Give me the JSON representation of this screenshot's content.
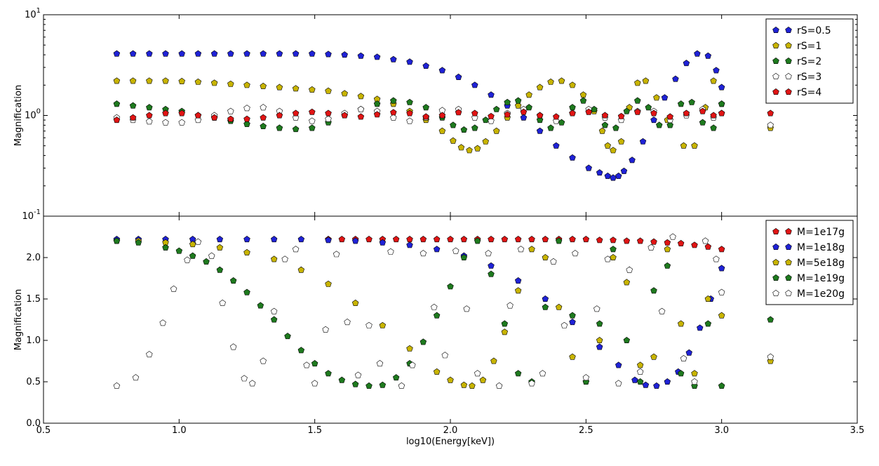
{
  "chart_data": [
    {
      "type": "scatter",
      "ylabel": "Magnification",
      "yscale": "log",
      "ylim": [
        0.1,
        10
      ],
      "ytick_labels": [
        "10^1",
        "10^0",
        "10^-1"
      ],
      "xlim": [
        0.5,
        3.5
      ],
      "legend_position": "top-right",
      "series": [
        {
          "name": "rS=0.5",
          "color": "#1f22d6",
          "x": [
            0.77,
            0.83,
            0.89,
            0.95,
            1.01,
            1.07,
            1.13,
            1.19,
            1.25,
            1.31,
            1.37,
            1.43,
            1.49,
            1.55,
            1.61,
            1.67,
            1.73,
            1.79,
            1.85,
            1.91,
            1.97,
            2.03,
            2.09,
            2.15,
            2.21,
            2.27,
            2.33,
            2.39,
            2.45,
            2.51,
            2.55,
            2.58,
            2.6,
            2.62,
            2.64,
            2.67,
            2.71,
            2.75,
            2.79,
            2.83,
            2.87,
            2.91,
            2.95,
            2.98,
            3.0
          ],
          "y": [
            4.1,
            4.1,
            4.1,
            4.1,
            4.1,
            4.1,
            4.1,
            4.1,
            4.1,
            4.1,
            4.1,
            4.1,
            4.1,
            4.05,
            4.0,
            3.9,
            3.8,
            3.6,
            3.4,
            3.1,
            2.8,
            2.4,
            2.0,
            1.6,
            1.25,
            0.95,
            0.7,
            0.5,
            0.38,
            0.3,
            0.27,
            0.25,
            0.24,
            0.25,
            0.28,
            0.36,
            0.55,
            0.9,
            1.5,
            2.3,
            3.3,
            4.1,
            3.9,
            2.8,
            1.9
          ]
        },
        {
          "name": "rS=1",
          "color": "#c8b400",
          "x": [
            0.77,
            0.83,
            0.89,
            0.95,
            1.01,
            1.07,
            1.13,
            1.19,
            1.25,
            1.31,
            1.37,
            1.43,
            1.49,
            1.55,
            1.61,
            1.67,
            1.73,
            1.79,
            1.85,
            1.91,
            1.97,
            2.01,
            2.04,
            2.07,
            2.1,
            2.13,
            2.17,
            2.21,
            2.25,
            2.29,
            2.33,
            2.37,
            2.41,
            2.45,
            2.49,
            2.53,
            2.56,
            2.58,
            2.6,
            2.63,
            2.66,
            2.69,
            2.72,
            2.76,
            2.8,
            2.86,
            2.9,
            2.94,
            2.97,
            3.0,
            3.18
          ],
          "y": [
            2.2,
            2.2,
            2.2,
            2.2,
            2.18,
            2.15,
            2.1,
            2.05,
            2.0,
            1.95,
            1.9,
            1.85,
            1.8,
            1.75,
            1.65,
            1.55,
            1.45,
            1.3,
            1.1,
            0.9,
            0.7,
            0.56,
            0.48,
            0.45,
            0.47,
            0.55,
            0.7,
            0.95,
            1.25,
            1.6,
            1.9,
            2.15,
            2.2,
            2.0,
            1.6,
            1.1,
            0.7,
            0.5,
            0.45,
            0.55,
            1.2,
            2.1,
            2.2,
            1.5,
            0.9,
            0.5,
            0.5,
            1.2,
            2.2,
            1.3,
            0.75
          ]
        },
        {
          "name": "rS=2",
          "color": "#1e7a1e",
          "x": [
            0.77,
            0.83,
            0.89,
            0.95,
            1.01,
            1.07,
            1.13,
            1.19,
            1.25,
            1.31,
            1.37,
            1.43,
            1.49,
            1.55,
            1.61,
            1.67,
            1.73,
            1.79,
            1.85,
            1.91,
            1.97,
            2.01,
            2.05,
            2.09,
            2.13,
            2.17,
            2.21,
            2.25,
            2.29,
            2.33,
            2.37,
            2.41,
            2.45,
            2.49,
            2.53,
            2.57,
            2.61,
            2.65,
            2.69,
            2.73,
            2.77,
            2.81,
            2.85,
            2.89,
            2.93,
            2.97,
            3.0
          ],
          "y": [
            1.3,
            1.25,
            1.2,
            1.15,
            1.1,
            1.0,
            0.95,
            0.88,
            0.82,
            0.78,
            0.75,
            0.73,
            0.75,
            0.85,
            1.0,
            1.15,
            1.3,
            1.4,
            1.35,
            1.2,
            0.95,
            0.8,
            0.72,
            0.75,
            0.9,
            1.15,
            1.35,
            1.4,
            1.2,
            0.9,
            0.75,
            0.85,
            1.2,
            1.4,
            1.15,
            0.8,
            0.75,
            1.1,
            1.4,
            1.2,
            0.8,
            0.8,
            1.3,
            1.35,
            0.85,
            0.75,
            1.3
          ]
        },
        {
          "name": "rS=3",
          "color": "#ffffff",
          "x": [
            0.77,
            0.83,
            0.89,
            0.95,
            1.01,
            1.07,
            1.13,
            1.19,
            1.25,
            1.31,
            1.37,
            1.43,
            1.49,
            1.55,
            1.61,
            1.67,
            1.73,
            1.79,
            1.85,
            1.91,
            1.97,
            2.03,
            2.09,
            2.15,
            2.21,
            2.27,
            2.33,
            2.39,
            2.45,
            2.51,
            2.57,
            2.63,
            2.69,
            2.75,
            2.81,
            2.87,
            2.93,
            2.97,
            3.0,
            3.18
          ],
          "y": [
            0.95,
            0.9,
            0.87,
            0.85,
            0.85,
            0.9,
            1.0,
            1.1,
            1.18,
            1.2,
            1.1,
            0.95,
            0.88,
            0.92,
            1.05,
            1.15,
            1.1,
            0.95,
            0.88,
            0.95,
            1.12,
            1.15,
            0.95,
            0.88,
            1.05,
            1.15,
            1.0,
            0.88,
            1.05,
            1.15,
            0.95,
            0.9,
            1.1,
            1.1,
            0.9,
            1.0,
            1.15,
            0.95,
            1.05,
            0.8
          ]
        },
        {
          "name": "rS=4",
          "color": "#e01414",
          "x": [
            0.77,
            0.83,
            0.89,
            0.95,
            1.01,
            1.07,
            1.13,
            1.19,
            1.25,
            1.31,
            1.37,
            1.43,
            1.49,
            1.55,
            1.61,
            1.67,
            1.73,
            1.79,
            1.85,
            1.91,
            1.97,
            2.03,
            2.09,
            2.15,
            2.21,
            2.27,
            2.33,
            2.39,
            2.45,
            2.51,
            2.57,
            2.63,
            2.69,
            2.75,
            2.81,
            2.87,
            2.93,
            2.97,
            3.0,
            3.18
          ],
          "y": [
            0.9,
            0.95,
            1.0,
            1.05,
            1.05,
            1.0,
            0.95,
            0.92,
            0.92,
            0.95,
            1.0,
            1.05,
            1.08,
            1.05,
            1.0,
            0.97,
            1.02,
            1.07,
            1.05,
            0.97,
            1.0,
            1.07,
            1.05,
            0.98,
            1.02,
            1.08,
            1.0,
            0.97,
            1.05,
            1.08,
            1.0,
            0.98,
            1.08,
            1.05,
            0.97,
            1.05,
            1.1,
            1.0,
            1.05,
            1.05
          ]
        }
      ]
    },
    {
      "type": "scatter",
      "xlabel": "log10(Energy[keV])",
      "ylabel": "Magnification",
      "ylim": [
        0.0,
        2.5
      ],
      "xlim": [
        0.5,
        3.5
      ],
      "ytick_labels": [
        "0.0",
        "0.5",
        "1.0",
        "1.5",
        "2.0"
      ],
      "xtick_labels": [
        "0.5",
        "1.0",
        "1.5",
        "2.0",
        "2.5",
        "3.0",
        "3.5"
      ],
      "legend_position": "top-right",
      "series": [
        {
          "name": "M=1e17g",
          "color": "#e01414",
          "x": [
            1.55,
            1.6,
            1.65,
            1.7,
            1.75,
            1.8,
            1.85,
            1.9,
            1.95,
            2.0,
            2.05,
            2.1,
            2.15,
            2.2,
            2.25,
            2.3,
            2.35,
            2.4,
            2.45,
            2.5,
            2.55,
            2.6,
            2.65,
            2.7,
            2.75,
            2.8,
            2.85,
            2.9,
            2.95,
            3.0
          ],
          "y": [
            2.22,
            2.22,
            2.22,
            2.22,
            2.22,
            2.22,
            2.22,
            2.22,
            2.22,
            2.22,
            2.22,
            2.22,
            2.22,
            2.22,
            2.22,
            2.22,
            2.22,
            2.22,
            2.22,
            2.22,
            2.21,
            2.21,
            2.2,
            2.2,
            2.19,
            2.18,
            2.17,
            2.15,
            2.13,
            2.1
          ]
        },
        {
          "name": "M=1e18g",
          "color": "#1f22d6",
          "x": [
            0.77,
            0.85,
            0.95,
            1.05,
            1.15,
            1.25,
            1.35,
            1.45,
            1.55,
            1.65,
            1.75,
            1.85,
            1.95,
            2.05,
            2.15,
            2.25,
            2.35,
            2.45,
            2.55,
            2.62,
            2.68,
            2.72,
            2.76,
            2.8,
            2.84,
            2.88,
            2.92,
            2.96,
            3.0
          ],
          "y": [
            2.22,
            2.22,
            2.22,
            2.22,
            2.22,
            2.22,
            2.22,
            2.22,
            2.21,
            2.2,
            2.18,
            2.15,
            2.1,
            2.02,
            1.9,
            1.72,
            1.5,
            1.22,
            0.92,
            0.7,
            0.52,
            0.46,
            0.45,
            0.5,
            0.62,
            0.85,
            1.15,
            1.5,
            1.87
          ]
        },
        {
          "name": "M=5e18g",
          "color": "#c8b400",
          "x": [
            0.77,
            0.85,
            0.95,
            1.05,
            1.15,
            1.25,
            1.35,
            1.45,
            1.55,
            1.65,
            1.75,
            1.85,
            1.95,
            2.0,
            2.05,
            2.08,
            2.12,
            2.16,
            2.2,
            2.25,
            2.3,
            2.35,
            2.4,
            2.45,
            2.5,
            2.55,
            2.6,
            2.65,
            2.7,
            2.75,
            2.8,
            2.85,
            2.9,
            2.95,
            3.0,
            3.18
          ],
          "y": [
            2.2,
            2.2,
            2.18,
            2.16,
            2.12,
            2.06,
            1.98,
            1.85,
            1.68,
            1.45,
            1.18,
            0.9,
            0.62,
            0.52,
            0.46,
            0.45,
            0.52,
            0.75,
            1.1,
            1.6,
            2.1,
            2.0,
            1.4,
            0.8,
            0.5,
            1.0,
            2.0,
            1.7,
            0.7,
            0.8,
            2.1,
            1.2,
            0.6,
            1.5,
            1.3,
            0.75
          ]
        },
        {
          "name": "M=1e19g",
          "color": "#1e7a1e",
          "x": [
            0.77,
            0.85,
            0.95,
            1.0,
            1.05,
            1.1,
            1.15,
            1.2,
            1.25,
            1.3,
            1.35,
            1.4,
            1.45,
            1.5,
            1.55,
            1.6,
            1.65,
            1.7,
            1.75,
            1.8,
            1.85,
            1.9,
            1.95,
            2.0,
            2.05,
            2.1,
            2.15,
            2.2,
            2.25,
            2.3,
            2.35,
            2.4,
            2.45,
            2.5,
            2.55,
            2.6,
            2.65,
            2.7,
            2.75,
            2.8,
            2.85,
            2.9,
            2.95,
            3.0,
            3.18
          ],
          "y": [
            2.2,
            2.18,
            2.12,
            2.08,
            2.02,
            1.95,
            1.85,
            1.72,
            1.58,
            1.42,
            1.25,
            1.05,
            0.88,
            0.72,
            0.6,
            0.52,
            0.47,
            0.45,
            0.46,
            0.55,
            0.72,
            0.98,
            1.3,
            1.65,
            2.0,
            2.2,
            1.8,
            1.2,
            0.6,
            0.5,
            1.4,
            2.2,
            1.3,
            0.5,
            1.2,
            2.1,
            1.0,
            0.5,
            1.6,
            1.9,
            0.6,
            0.45,
            1.2,
            0.45,
            1.25
          ]
        },
        {
          "name": "M=1e20g",
          "color": "#ffffff",
          "x": [
            0.77,
            0.84,
            0.89,
            0.94,
            0.98,
            1.03,
            1.07,
            1.12,
            1.16,
            1.2,
            1.24,
            1.27,
            1.31,
            1.35,
            1.39,
            1.43,
            1.47,
            1.5,
            1.54,
            1.58,
            1.62,
            1.66,
            1.7,
            1.74,
            1.78,
            1.82,
            1.86,
            1.9,
            1.94,
            1.98,
            2.02,
            2.06,
            2.1,
            2.14,
            2.18,
            2.22,
            2.26,
            2.3,
            2.34,
            2.38,
            2.42,
            2.46,
            2.5,
            2.54,
            2.58,
            2.62,
            2.66,
            2.7,
            2.74,
            2.78,
            2.82,
            2.86,
            2.9,
            2.94,
            2.98,
            3.0,
            3.18
          ],
          "y": [
            0.45,
            0.55,
            0.83,
            1.21,
            1.62,
            1.97,
            2.19,
            2.02,
            1.45,
            0.92,
            0.54,
            0.48,
            0.75,
            1.35,
            1.98,
            2.1,
            0.7,
            0.48,
            1.13,
            2.04,
            1.22,
            0.58,
            1.18,
            0.72,
            2.07,
            0.45,
            0.7,
            2.05,
            1.4,
            0.82,
            2.08,
            1.38,
            0.6,
            2.05,
            0.45,
            1.42,
            2.1,
            0.48,
            0.6,
            1.95,
            1.18,
            2.05,
            0.55,
            1.38,
            1.98,
            0.48,
            1.85,
            0.62,
            2.12,
            1.35,
            2.25,
            0.78,
            0.5,
            2.2,
            1.98,
            1.58,
            0.8
          ]
        }
      ]
    }
  ]
}
